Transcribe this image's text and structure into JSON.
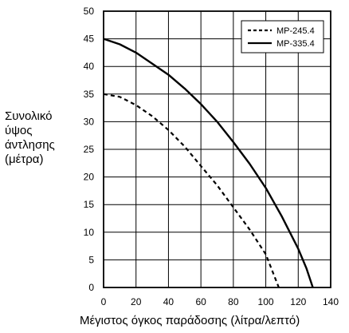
{
  "chart_data": {
    "type": "line",
    "title": "",
    "xlabel": "Μέγιστος όγκος παράδοσης (λίτρα/λεπτό)",
    "ylabel_lines": [
      "Συνολικό",
      "ύψος",
      "άντλησης",
      "(μέτρα)"
    ],
    "xlim": [
      0,
      140
    ],
    "ylim": [
      0,
      50
    ],
    "x_ticks": [
      "0",
      "20",
      "40",
      "60",
      "80",
      "100",
      "120",
      "140"
    ],
    "y_ticks": [
      "0",
      "5",
      "10",
      "15",
      "20",
      "25",
      "30",
      "35",
      "40",
      "45",
      "50"
    ],
    "grid": true,
    "legend_position": "top-right",
    "series": [
      {
        "name": "MP-245.4",
        "style": "dashed",
        "color": "#000000",
        "points": [
          [
            0,
            35
          ],
          [
            10,
            34.5
          ],
          [
            20,
            33
          ],
          [
            30,
            31
          ],
          [
            40,
            28.5
          ],
          [
            50,
            25.5
          ],
          [
            60,
            22
          ],
          [
            70,
            18.5
          ],
          [
            80,
            14.5
          ],
          [
            90,
            10.5
          ],
          [
            100,
            6
          ],
          [
            108,
            0
          ]
        ]
      },
      {
        "name": "MP-335.4",
        "style": "solid",
        "color": "#000000",
        "points": [
          [
            0,
            45
          ],
          [
            10,
            44
          ],
          [
            20,
            42.5
          ],
          [
            30,
            40.5
          ],
          [
            40,
            38.5
          ],
          [
            50,
            36
          ],
          [
            60,
            33.2
          ],
          [
            70,
            30
          ],
          [
            80,
            26.3
          ],
          [
            90,
            22.4
          ],
          [
            100,
            18
          ],
          [
            110,
            12.8
          ],
          [
            120,
            7
          ],
          [
            125,
            3.5
          ],
          [
            129,
            0
          ]
        ]
      }
    ]
  }
}
